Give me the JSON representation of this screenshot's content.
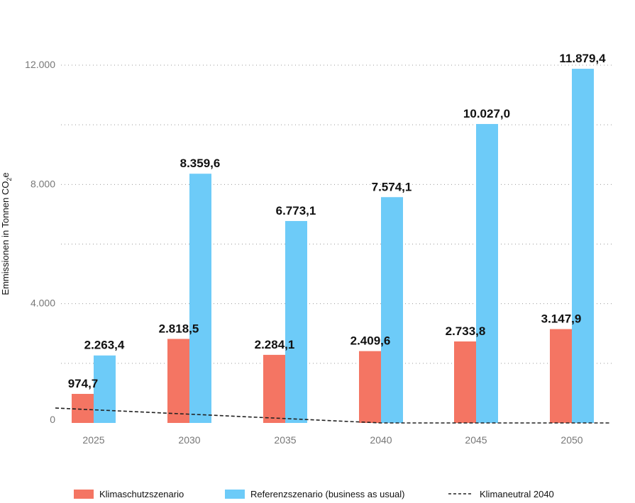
{
  "chart_data": {
    "type": "bar",
    "categories": [
      "2025",
      "2030",
      "2035",
      "2040",
      "2045",
      "2050"
    ],
    "series": [
      {
        "name": "Klimaschutzszenario",
        "color": "#F47563",
        "values": [
          974.7,
          2818.5,
          2284.1,
          2409.6,
          2733.8,
          3147.9
        ]
      },
      {
        "name": "Referenzszenario (business as usual)",
        "color": "#6DCBF8",
        "values": [
          2263.4,
          8359.6,
          6773.1,
          7574.1,
          10027.0,
          11879.4
        ]
      }
    ],
    "data_labels": {
      "Klimaschutzszenario": [
        "974,7",
        "2.818,5",
        "2.284,1",
        "2.409,6",
        "2.733,8",
        "3.147,9"
      ],
      "Referenzszenario (business as usual)": [
        "2.263,4",
        "8.359,6",
        "6.773,1",
        "7.574,1",
        "10.027,0",
        "11.879,4"
      ]
    },
    "line": {
      "name": "Klimaneutral 2040",
      "style": "dashed",
      "color": "#222222",
      "x": [
        2023,
        2040,
        2052
      ],
      "values": [
        500,
        0,
        0
      ]
    },
    "ylabel_main": "Emmissionen in Tonnen CO",
    "ylabel_sub": "2",
    "ylabel_tail": "e",
    "ylim": [
      0,
      12000
    ],
    "yticks": [
      0,
      4000,
      8000,
      12000
    ],
    "ytick_labels": [
      "0",
      "4.000",
      "8.000",
      "12.000"
    ],
    "grid": true,
    "legend_position": "bottom"
  }
}
